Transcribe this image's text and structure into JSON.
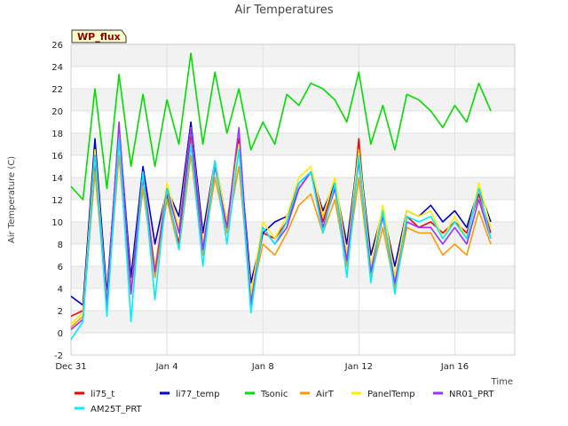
{
  "chart_data": {
    "type": "line",
    "title": "Air Temperatures",
    "xlabel": "Time",
    "ylabel": "Air Temperature (C)",
    "badge": "WP_flux",
    "ylim": [
      -2,
      26
    ],
    "yticks": [
      -2,
      0,
      2,
      4,
      6,
      8,
      10,
      12,
      14,
      16,
      18,
      20,
      22,
      24,
      26
    ],
    "xlim": [
      0,
      18.5
    ],
    "xticks": [
      {
        "label": "Dec 31",
        "value": 0
      },
      {
        "label": "Jan 4",
        "value": 4
      },
      {
        "label": "Jan 8",
        "value": 8
      },
      {
        "label": "Jan 12",
        "value": 12
      },
      {
        "label": "Jan 16",
        "value": 16
      }
    ],
    "grid": true,
    "legend_position": "bottom",
    "x": [
      0,
      0.5,
      1,
      1.5,
      2,
      2.5,
      3,
      3.5,
      4,
      4.5,
      5,
      5.5,
      6,
      6.5,
      7,
      7.5,
      8,
      8.5,
      9,
      9.5,
      10,
      10.5,
      11,
      11.5,
      12,
      12.5,
      13,
      13.5,
      14,
      14.5,
      15,
      15.5,
      16,
      16.5,
      17,
      17.5
    ],
    "series": [
      {
        "name": "li75_t",
        "color": "#ff0000",
        "values": [
          1.5,
          2.0,
          15.5,
          3.0,
          18.0,
          4.0,
          14.0,
          5.0,
          12.5,
          8.0,
          18.0,
          7.0,
          15.0,
          9.5,
          17.5,
          3.0,
          9.0,
          8.5,
          10.0,
          13.0,
          14.5,
          10.0,
          13.5,
          6.0,
          17.5,
          5.0,
          11.0,
          4.0,
          10.5,
          9.5,
          10.0,
          9.0,
          10.0,
          9.0,
          12.5,
          9.0
        ]
      },
      {
        "name": "li77_temp",
        "color": "#0000cc",
        "values": [
          3.3,
          2.5,
          17.5,
          3.5,
          18.5,
          5.0,
          15.0,
          8.0,
          13.0,
          10.5,
          19.0,
          9.0,
          15.5,
          10.0,
          17.0,
          4.5,
          9.0,
          10.0,
          10.5,
          13.5,
          14.5,
          11.0,
          13.5,
          8.0,
          16.5,
          7.0,
          11.0,
          6.0,
          11.0,
          10.5,
          11.5,
          10.0,
          11.0,
          9.5,
          13.0,
          10.0
        ]
      },
      {
        "name": "Tsonic",
        "color": "#00dd00",
        "values": [
          13.2,
          12.0,
          22.0,
          13.0,
          23.3,
          15.0,
          21.5,
          15.0,
          21.0,
          17.0,
          25.2,
          17.0,
          23.5,
          18.0,
          22.0,
          16.5,
          19.0,
          17.0,
          21.5,
          20.5,
          22.5,
          22.0,
          21.0,
          19.0,
          23.5,
          17.0,
          20.5,
          16.5,
          21.5,
          21.0,
          20.0,
          18.5,
          20.5,
          19.0,
          22.5,
          20.0
        ]
      },
      {
        "name": "AirT",
        "color": "#ff9900",
        "values": [
          0.5,
          1.5,
          14.5,
          2.5,
          16.0,
          3.5,
          13.0,
          5.0,
          12.0,
          7.5,
          16.0,
          7.0,
          14.0,
          9.0,
          15.0,
          3.0,
          8.0,
          7.0,
          9.0,
          11.5,
          12.5,
          9.0,
          12.0,
          6.0,
          14.0,
          5.0,
          9.5,
          4.0,
          9.5,
          9.0,
          9.0,
          7.0,
          8.0,
          7.0,
          11.0,
          8.0
        ]
      },
      {
        "name": "PanelTemp",
        "color": "#ffee00",
        "values": [
          0.8,
          1.8,
          16.5,
          2.8,
          18.5,
          3.8,
          14.5,
          6.0,
          13.5,
          9.5,
          18.5,
          8.0,
          15.5,
          10.0,
          17.0,
          3.5,
          10.0,
          8.5,
          10.5,
          14.0,
          15.0,
          10.5,
          14.0,
          7.0,
          16.5,
          6.0,
          11.5,
          5.0,
          11.0,
          10.5,
          11.0,
          8.5,
          10.5,
          8.5,
          13.5,
          9.5
        ]
      },
      {
        "name": "NR01_PRT",
        "color": "#9933ff",
        "values": [
          0.3,
          1.2,
          16.0,
          2.5,
          19.0,
          3.5,
          14.5,
          5.5,
          13.0,
          9.0,
          18.5,
          7.5,
          15.0,
          9.5,
          18.5,
          2.5,
          9.5,
          8.0,
          9.5,
          13.0,
          14.5,
          9.5,
          13.0,
          6.5,
          15.5,
          5.5,
          10.5,
          4.5,
          10.0,
          9.5,
          9.5,
          8.0,
          9.5,
          8.0,
          12.0,
          8.5
        ]
      },
      {
        "name": "AM25T_PRT",
        "color": "#00eeff",
        "values": [
          -0.6,
          1.0,
          16.0,
          1.5,
          17.5,
          1.0,
          14.5,
          3.0,
          13.0,
          7.5,
          17.0,
          6.0,
          15.5,
          8.0,
          16.5,
          1.8,
          9.5,
          8.0,
          10.0,
          13.5,
          14.5,
          9.0,
          13.5,
          5.0,
          16.0,
          4.5,
          11.0,
          3.5,
          10.5,
          10.0,
          10.5,
          8.5,
          10.0,
          8.5,
          13.0,
          8.5
        ]
      }
    ]
  }
}
